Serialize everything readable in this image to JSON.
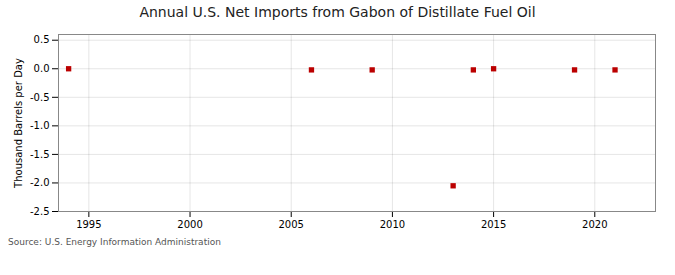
{
  "chart_data": {
    "type": "scatter",
    "title": "Annual U.S. Net Imports from Gabon of Distillate Fuel Oil",
    "ylabel": "Thousand Barrels per Day",
    "source": "Source: U.S. Energy Information Administration",
    "x": [
      1994,
      2006,
      2009,
      2013,
      2014,
      2015,
      2019,
      2021
    ],
    "values": [
      0.0,
      -0.02,
      -0.02,
      -2.05,
      -0.02,
      0.0,
      -0.02,
      -0.02
    ],
    "color": "#bb0000",
    "marker": "square",
    "xlim": [
      1993.5,
      2023
    ],
    "xticks": [
      1995,
      2000,
      2005,
      2010,
      2015,
      2020
    ],
    "ylim": [
      -2.5,
      0.6
    ],
    "yticks": [
      0.5,
      {
        "value": 0.0,
        "label": "0.0"
      },
      -0.5,
      {
        "value": -1.0,
        "label": "-1.0"
      },
      -1.5,
      {
        "value": -2.0,
        "label": "-2.0"
      },
      -2.5
    ],
    "grid": true
  }
}
